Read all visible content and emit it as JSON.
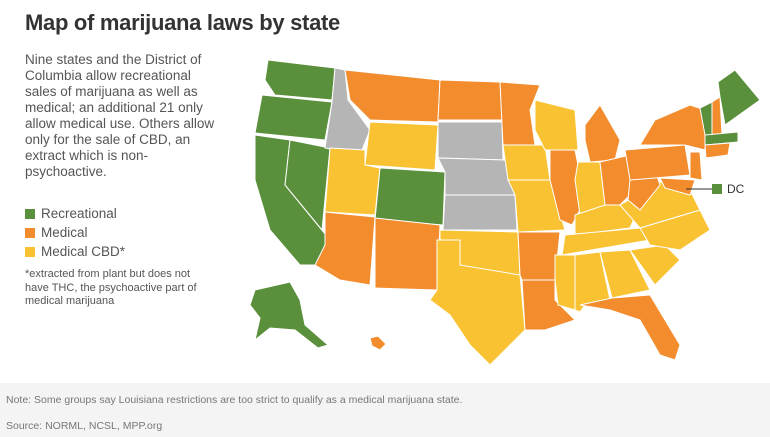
{
  "title": "Map of marijuana laws by state",
  "description": "Nine states and the District of Columbia allow recreational sales of marijuana as well as medical; an additional 21 only allow medical use. Others allow only for the sale of CBD, an extract which is non-psychoactive.",
  "legend": {
    "items": [
      {
        "label": "Recreational",
        "color": "#5a8f3c"
      },
      {
        "label": "Medical",
        "color": "#f28c2d"
      },
      {
        "label": "Medical CBD*",
        "color": "#f9c232"
      }
    ]
  },
  "footnote": "*extracted from plant but does not have THC, the psychoactive part of medical marijuana",
  "map": {
    "dc_label": "DC"
  },
  "note": "Note: Some groups say Louisiana restrictions are too strict to qualify as a medical marijuana state.",
  "source": "Source: NORML, NCSL, MPP.org"
}
